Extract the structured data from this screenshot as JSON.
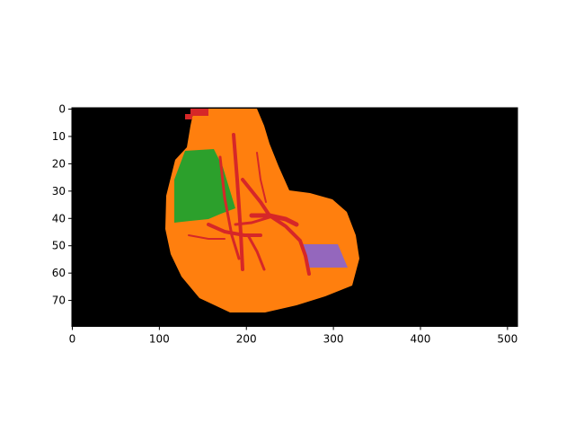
{
  "figure": {
    "background": "#ffffff",
    "x_ticks": [
      "0",
      "100",
      "200",
      "300",
      "400",
      "500"
    ],
    "y_ticks": [
      "0",
      "10",
      "20",
      "30",
      "40",
      "50",
      "60",
      "70"
    ]
  },
  "image": {
    "width": 512,
    "height": 80,
    "background_color": "#000000",
    "segments": [
      {
        "id": "organ",
        "color": "#ff7f0e"
      },
      {
        "id": "vessels",
        "color": "#d62728"
      },
      {
        "id": "green-region",
        "color": "#2ca02c"
      },
      {
        "id": "purple-region",
        "color": "#9467bd"
      }
    ]
  }
}
